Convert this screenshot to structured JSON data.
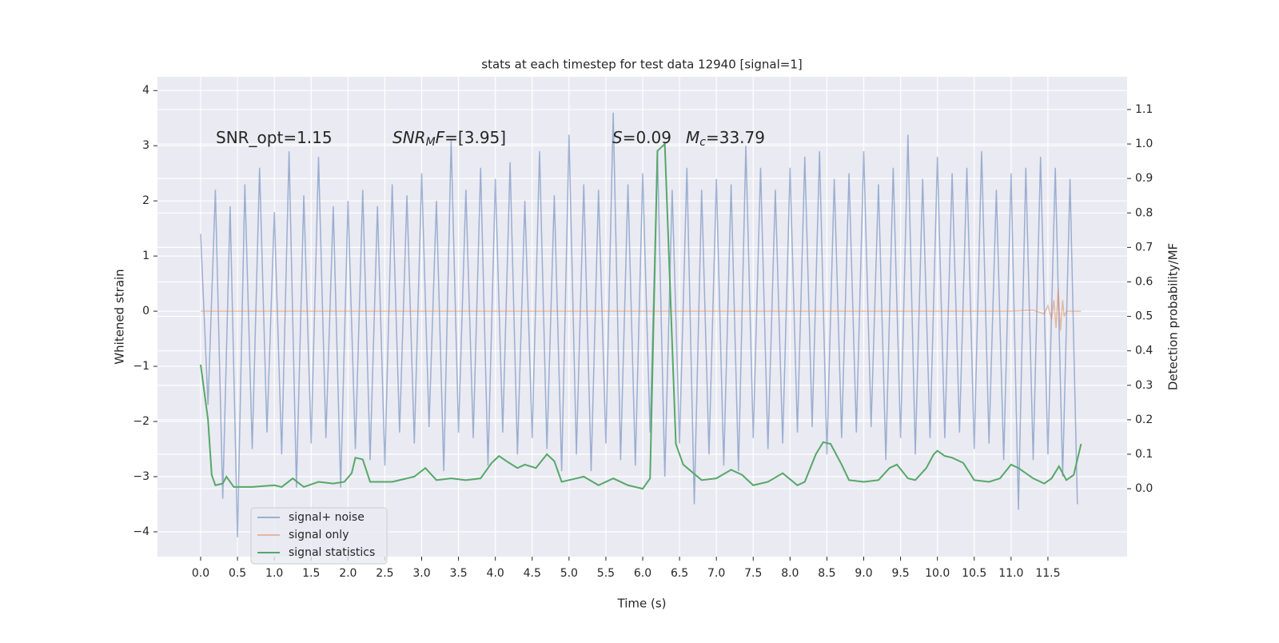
{
  "chart_data": {
    "type": "line",
    "title": "stats at each timestep for test data 12940 [signal=1]",
    "xlabel": "Time (s)",
    "ylabel": "Whitened strain",
    "y2label": "Detection probability/MF",
    "annotations": [
      [
        {
          "text": "SNR_opt=1.15"
        }
      ],
      [
        {
          "text": "SNR",
          "italic": true
        },
        {
          "text": "M",
          "italic": true,
          "sub": true
        },
        {
          "text": "F",
          "italic": true
        },
        {
          "text": "=[3.95]"
        }
      ],
      [
        {
          "text": "S",
          "italic": true
        },
        {
          "text": "=0.09"
        }
      ],
      [
        {
          "text": "M",
          "italic": true
        },
        {
          "text": "c",
          "italic": true,
          "sub": true
        },
        {
          "text": "=33.79"
        }
      ]
    ],
    "xlim": [
      -0.586,
      12.575
    ],
    "ylim": [
      -4.45,
      4.25
    ],
    "y2lim": [
      -0.197,
      1.195
    ],
    "xticks": [
      {
        "value": 0,
        "label": "0.0"
      },
      0.5,
      {
        "value": 1,
        "label": "1.0"
      },
      1.5,
      {
        "value": 2,
        "label": "2.0"
      },
      2.5,
      {
        "value": 3,
        "label": "3.0"
      },
      3.5,
      {
        "value": 4,
        "label": "4.0"
      },
      4.5,
      {
        "value": 5,
        "label": "5.0"
      },
      5.5,
      {
        "value": 6,
        "label": "6.0"
      },
      6.5,
      {
        "value": 7,
        "label": "7.0"
      },
      7.5,
      {
        "value": 8,
        "label": "8.0"
      },
      8.5,
      {
        "value": 9,
        "label": "9.0"
      },
      9.5,
      {
        "value": 10,
        "label": "10.0"
      },
      10.5,
      {
        "value": 11,
        "label": "11.0"
      },
      11.5
    ],
    "yticks": [
      {
        "value": -4,
        "label": "−4"
      },
      {
        "value": -3,
        "label": "−3"
      },
      {
        "value": -2,
        "label": "−2"
      },
      {
        "value": -1,
        "label": "−1"
      },
      0,
      1,
      2,
      3,
      4
    ],
    "y2ticks": [
      {
        "value": 0,
        "label": "0.0"
      },
      0.1,
      0.2,
      0.3,
      0.4,
      0.5,
      0.6,
      0.7,
      0.8,
      0.9,
      {
        "value": 1,
        "label": "1.0"
      },
      1.1
    ],
    "grid": true,
    "legend": "lower left",
    "series": [
      {
        "name": "signal+ noise",
        "color": "#4c72b0",
        "alpha": 0.5,
        "x": [
          0,
          0.1,
          0.2,
          0.3,
          0.4,
          0.5,
          0.6,
          0.7,
          0.8,
          0.9,
          1,
          1.1,
          1.2,
          1.3,
          1.4,
          1.5,
          1.6,
          1.7,
          1.8,
          1.9,
          2,
          2.1,
          2.2,
          2.3,
          2.4,
          2.5,
          2.6,
          2.7,
          2.8,
          2.9,
          3,
          3.1,
          3.2,
          3.3,
          3.4,
          3.5,
          3.6,
          3.7,
          3.8,
          3.9,
          4,
          4.1,
          4.2,
          4.3,
          4.4,
          4.5,
          4.6,
          4.7,
          4.8,
          4.9,
          5,
          5.1,
          5.2,
          5.3,
          5.4,
          5.5,
          5.6,
          5.7,
          5.8,
          5.9,
          6,
          6.1,
          6.2,
          6.3,
          6.4,
          6.5,
          6.6,
          6.7,
          6.8,
          6.9,
          7,
          7.1,
          7.2,
          7.3,
          7.4,
          7.5,
          7.6,
          7.7,
          7.8,
          7.9,
          8,
          8.1,
          8.2,
          8.3,
          8.4,
          8.5,
          8.6,
          8.7,
          8.8,
          8.9,
          9,
          9.1,
          9.2,
          9.3,
          9.4,
          9.5,
          9.6,
          9.7,
          9.8,
          9.9,
          10,
          10.1,
          10.2,
          10.3,
          10.4,
          10.5,
          10.6,
          10.7,
          10.8,
          10.9,
          11,
          11.1,
          11.2,
          11.3,
          11.4,
          11.5,
          11.6,
          11.7,
          11.8,
          11.9
        ],
        "values": [
          1.4,
          -1.7,
          2.2,
          -3.4,
          1.9,
          -4.1,
          2.3,
          -2.5,
          2.6,
          -2.2,
          1.8,
          -2.6,
          2.9,
          -3.2,
          2.1,
          -2.4,
          2.8,
          -2.3,
          1.9,
          -3.2,
          2.0,
          -2.5,
          2.2,
          -2.7,
          1.9,
          -2.8,
          2.3,
          -2.2,
          2.1,
          -2.4,
          2.5,
          -2.1,
          2.0,
          -2.9,
          3.1,
          -2.2,
          2.2,
          -2.3,
          2.6,
          -2.8,
          2.4,
          -2.2,
          2.7,
          -2.6,
          2.0,
          -2.3,
          2.9,
          -2.5,
          2.1,
          -2.9,
          3.2,
          -2.6,
          2.3,
          -2.9,
          2.2,
          -2.4,
          3.6,
          -2.7,
          2.3,
          -2.8,
          2.5,
          -2.2,
          2.9,
          -3.0,
          2.2,
          -2.4,
          2.6,
          -3.5,
          2.2,
          -2.6,
          2.4,
          -2.8,
          2.3,
          -2.9,
          3.0,
          -2.3,
          2.6,
          -2.5,
          2.2,
          -2.4,
          2.6,
          -2.2,
          2.8,
          -2.1,
          2.9,
          -2.6,
          2.4,
          -2.3,
          2.5,
          -2.2,
          2.9,
          -2.1,
          2.3,
          -2.7,
          2.6,
          -2.3,
          3.2,
          -2.6,
          2.4,
          -2.3,
          2.8,
          -2.3,
          2.5,
          -2.2,
          2.6,
          -2.5,
          2.9,
          -2.4,
          2.2,
          -2.7,
          2.5,
          -3.6,
          2.6,
          -2.7,
          2.8,
          -2.6,
          2.6,
          -3.0,
          2.4,
          -3.5
        ]
      },
      {
        "name": "signal only",
        "color": "#dd8452",
        "alpha": 0.5,
        "x": [
          0,
          11.0,
          11.3,
          11.45,
          11.5,
          11.55,
          11.58,
          11.61,
          11.64,
          11.67,
          11.7,
          11.72,
          11.75,
          11.95
        ],
        "values": [
          0,
          0,
          0.02,
          -0.05,
          0.1,
          -0.15,
          0.2,
          -0.3,
          0.4,
          -0.35,
          0.2,
          -0.1,
          0,
          0
        ]
      },
      {
        "name": "signal statistics",
        "color": "#55a868",
        "axis": "y2",
        "x": [
          0,
          0.1,
          0.15,
          0.2,
          0.3,
          0.35,
          0.45,
          0.7,
          1.0,
          1.1,
          1.25,
          1.4,
          1.6,
          1.8,
          1.95,
          2.05,
          2.1,
          2.2,
          2.3,
          2.6,
          2.9,
          3.05,
          3.2,
          3.4,
          3.6,
          3.8,
          3.95,
          4.05,
          4.15,
          4.3,
          4.4,
          4.55,
          4.7,
          4.8,
          4.9,
          5.0,
          5.2,
          5.4,
          5.6,
          5.8,
          6.0,
          6.1,
          6.2,
          6.3,
          6.45,
          6.55,
          6.8,
          7.0,
          7.2,
          7.35,
          7.5,
          7.7,
          7.9,
          8.1,
          8.2,
          8.35,
          8.45,
          8.55,
          8.7,
          8.8,
          9.0,
          9.2,
          9.35,
          9.45,
          9.6,
          9.7,
          9.85,
          9.95,
          10.0,
          10.1,
          10.2,
          10.35,
          10.5,
          10.7,
          10.85,
          11.0,
          11.1,
          11.3,
          11.45,
          11.55,
          11.65,
          11.75,
          11.85,
          11.95
        ],
        "values": [
          0.36,
          0.2,
          0.04,
          0.01,
          0.015,
          0.035,
          0.005,
          0.005,
          0.01,
          0.005,
          0.03,
          0.005,
          0.02,
          0.015,
          0.02,
          0.045,
          0.09,
          0.085,
          0.02,
          0.02,
          0.035,
          0.06,
          0.025,
          0.03,
          0.025,
          0.03,
          0.075,
          0.095,
          0.08,
          0.06,
          0.07,
          0.06,
          0.1,
          0.08,
          0.02,
          0.025,
          0.035,
          0.01,
          0.03,
          0.01,
          0.0,
          0.03,
          0.98,
          1.0,
          0.13,
          0.07,
          0.025,
          0.03,
          0.055,
          0.04,
          0.01,
          0.02,
          0.045,
          0.01,
          0.02,
          0.1,
          0.135,
          0.13,
          0.07,
          0.025,
          0.02,
          0.025,
          0.06,
          0.07,
          0.03,
          0.025,
          0.06,
          0.1,
          0.11,
          0.095,
          0.09,
          0.075,
          0.025,
          0.02,
          0.03,
          0.07,
          0.06,
          0.03,
          0.015,
          0.03,
          0.065,
          0.025,
          0.04,
          0.13
        ]
      }
    ]
  }
}
